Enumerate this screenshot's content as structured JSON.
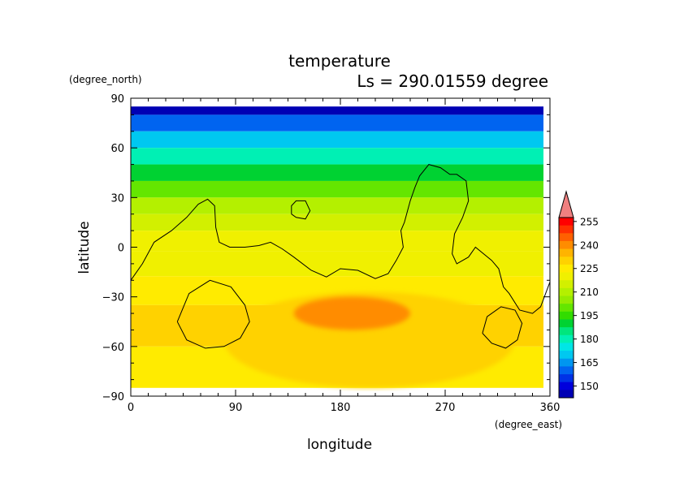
{
  "chart_data": {
    "type": "heatmap",
    "title": "temperature",
    "subtitle": "Ls = 290.01559 degree",
    "xlabel": "longitude",
    "ylabel": "latitude",
    "x_units": "(degree_east)",
    "y_units": "(degree_north)",
    "xlim": [
      0,
      360
    ],
    "ylim": [
      -90,
      90
    ],
    "x_ticks": [
      "0",
      "90",
      "180",
      "270",
      "360"
    ],
    "y_ticks": [
      "90",
      "60",
      "30",
      "0",
      "−30",
      "−60",
      "−90"
    ],
    "colorbar": {
      "labels": [
        "255",
        "240",
        "225",
        "210",
        "195",
        "180",
        "165",
        "150"
      ],
      "levels": [
        255,
        250,
        245,
        240,
        235,
        230,
        225,
        220,
        215,
        210,
        205,
        200,
        195,
        190,
        185,
        180,
        175,
        170,
        165,
        160,
        155,
        150,
        145
      ],
      "colors": [
        "#ff0000",
        "#ff3000",
        "#ff6000",
        "#ff8c00",
        "#ffb400",
        "#ffd200",
        "#ffeb00",
        "#f0f000",
        "#d2f000",
        "#b4f000",
        "#96eb00",
        "#64e600",
        "#32dc00",
        "#00d232",
        "#00e67d",
        "#00f0b4",
        "#00e6e6",
        "#00c8f0",
        "#0096f0",
        "#0064f0",
        "#0032e6",
        "#0000dc",
        "#0000b4"
      ],
      "extend_color": "#f08080"
    },
    "field_latitude_bands": [
      {
        "lat": 85,
        "value": 145
      },
      {
        "lat": 75,
        "value": 160
      },
      {
        "lat": 65,
        "value": 172
      },
      {
        "lat": 55,
        "value": 182
      },
      {
        "lat": 45,
        "value": 192
      },
      {
        "lat": 35,
        "value": 202
      },
      {
        "lat": 25,
        "value": 212
      },
      {
        "lat": 15,
        "value": 218
      },
      {
        "lat": 5,
        "value": 222
      },
      {
        "lat": -10,
        "value": 224
      },
      {
        "lat": -25,
        "value": 227
      },
      {
        "lat": -45,
        "value": 232
      },
      {
        "lat": -75,
        "value": 228
      }
    ],
    "warm_regions": [
      {
        "lon": [
          80,
          330
        ],
        "lat": [
          -85,
          -27
        ],
        "value": 232
      },
      {
        "lon": [
          140,
          240
        ],
        "lat": [
          -50,
          -30
        ],
        "value": 240
      }
    ],
    "contours": {
      "line_color": "#000000",
      "paths": [
        [
          [
            0,
            -20
          ],
          [
            10,
            -10
          ],
          [
            20,
            3
          ],
          [
            35,
            10
          ],
          [
            48,
            18
          ],
          [
            58,
            26
          ],
          [
            66,
            29
          ],
          [
            72,
            25
          ],
          [
            73,
            12
          ],
          [
            76,
            3
          ],
          [
            85,
            0
          ],
          [
            98,
            0
          ],
          [
            110,
            1
          ],
          [
            120,
            3
          ],
          [
            130,
            -1
          ],
          [
            140,
            -6
          ],
          [
            155,
            -14
          ],
          [
            168,
            -18
          ],
          [
            180,
            -13
          ],
          [
            195,
            -14
          ],
          [
            210,
            -19
          ],
          [
            221,
            -16
          ],
          [
            228,
            -8
          ],
          [
            234,
            0
          ],
          [
            232,
            10
          ],
          [
            235,
            15
          ],
          [
            240,
            28
          ],
          [
            244,
            36
          ],
          [
            248,
            43
          ],
          [
            256,
            50
          ],
          [
            266,
            48
          ],
          [
            274,
            44
          ],
          [
            280,
            44
          ],
          [
            288,
            40
          ],
          [
            290,
            28
          ],
          [
            285,
            18
          ],
          [
            278,
            8
          ],
          [
            276,
            -4
          ],
          [
            280,
            -10
          ],
          [
            290,
            -6
          ],
          [
            296,
            0
          ],
          [
            310,
            -8
          ],
          [
            316,
            -13
          ],
          [
            320,
            -24
          ],
          [
            325,
            -28
          ],
          [
            334,
            -38
          ],
          [
            345,
            -40
          ],
          [
            352,
            -36
          ],
          [
            360,
            -21
          ]
        ],
        [
          [
            138,
            20
          ],
          [
            138,
            25
          ],
          [
            142,
            28
          ],
          [
            150,
            28
          ],
          [
            154,
            22
          ],
          [
            150,
            17
          ],
          [
            142,
            18
          ],
          [
            138,
            20
          ]
        ],
        [
          [
            40,
            -45
          ],
          [
            50,
            -28
          ],
          [
            68,
            -20
          ],
          [
            86,
            -24
          ],
          [
            98,
            -35
          ],
          [
            102,
            -45
          ],
          [
            94,
            -55
          ],
          [
            80,
            -60
          ],
          [
            64,
            -61
          ],
          [
            48,
            -56
          ],
          [
            40,
            -45
          ]
        ],
        [
          [
            302,
            -52
          ],
          [
            306,
            -42
          ],
          [
            318,
            -36
          ],
          [
            330,
            -38
          ],
          [
            336,
            -46
          ],
          [
            332,
            -56
          ],
          [
            322,
            -61
          ],
          [
            310,
            -58
          ],
          [
            302,
            -52
          ]
        ]
      ]
    }
  }
}
